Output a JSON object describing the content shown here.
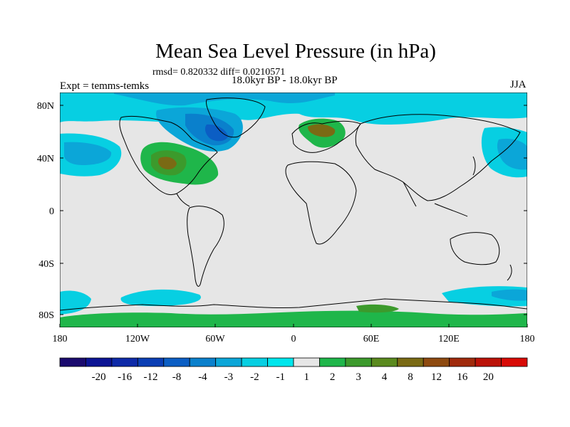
{
  "title": "Mean Sea Level Pressure (in hPa)",
  "stats_line": "rmsd= 0.820332 diff= 0.0210571",
  "left_label": "Expt = temms-temks",
  "period_label": "18.0kyr BP - 18.0kyr BP",
  "season_label": "JJA",
  "lat_labels": [
    "80N",
    "40N",
    "0",
    "40S",
    "80S"
  ],
  "lon_labels": [
    "180",
    "120W",
    "60W",
    "0",
    "60E",
    "120E",
    "180"
  ],
  "colorbar": {
    "labels": [
      "-20",
      "-16",
      "-12",
      "-8",
      "-4",
      "-3",
      "-2",
      "-1",
      "1",
      "2",
      "3",
      "4",
      "8",
      "12",
      "16",
      "20"
    ],
    "colors": [
      "#1a0a6e",
      "#0c1494",
      "#0e2aa8",
      "#0a3eb4",
      "#0b5ec4",
      "#0a80cc",
      "#0ba6d8",
      "#07cfe2",
      "#00e6ec",
      "#e6e6e6",
      "#1fb64a",
      "#3c9a2c",
      "#5a8a1e",
      "#7a6a14",
      "#8e4a10",
      "#a02a0c",
      "#bb1208",
      "#d80a06"
    ]
  },
  "colors": {
    "land_bg": "#e6e6e6",
    "coast": "#000000"
  }
}
